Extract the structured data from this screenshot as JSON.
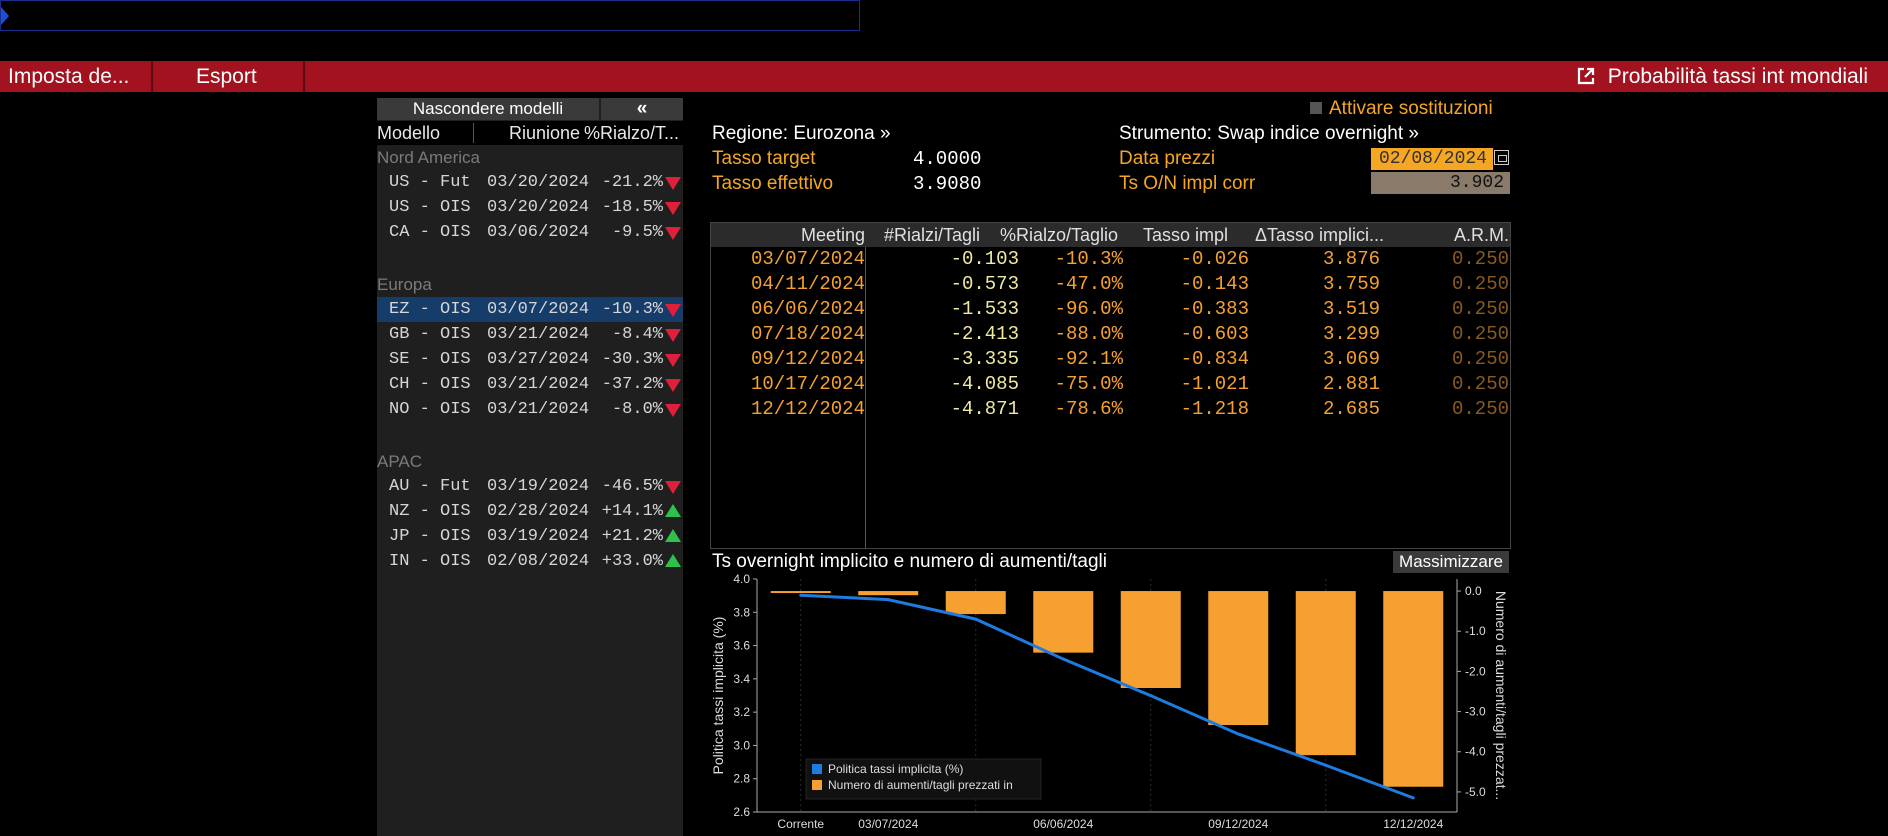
{
  "command_bar": {
    "value": ""
  },
  "toolbar": {
    "settings_label": "Imposta de...",
    "export_label": "Esport",
    "title": "Probabilità tassi int mondiali"
  },
  "left_panel": {
    "hide_models_label": "Nascondere modelli",
    "collapse_label": "«",
    "headers": {
      "model": "Modello",
      "meeting": "Riunione",
      "pct": "%Rialzo/T..."
    },
    "groups": [
      {
        "name": "Nord America",
        "rows": [
          {
            "model": "US - Fut",
            "date": "03/20/2024",
            "pct": "-21.2%",
            "dir": "down"
          },
          {
            "model": "US - OIS",
            "date": "03/20/2024",
            "pct": "-18.5%",
            "dir": "down"
          },
          {
            "model": "CA - OIS",
            "date": "03/06/2024",
            "pct": "-9.5%",
            "dir": "down"
          }
        ]
      },
      {
        "name": "Europa",
        "rows": [
          {
            "model": "EZ - OIS",
            "date": "03/07/2024",
            "pct": "-10.3%",
            "dir": "down",
            "selected": true
          },
          {
            "model": "GB - OIS",
            "date": "03/21/2024",
            "pct": "-8.4%",
            "dir": "down"
          },
          {
            "model": "SE - OIS",
            "date": "03/27/2024",
            "pct": "-30.3%",
            "dir": "down"
          },
          {
            "model": "CH - OIS",
            "date": "03/21/2024",
            "pct": "-37.2%",
            "dir": "down"
          },
          {
            "model": "NO - OIS",
            "date": "03/21/2024",
            "pct": "-8.0%",
            "dir": "down"
          }
        ]
      },
      {
        "name": "APAC",
        "rows": [
          {
            "model": "AU - Fut",
            "date": "03/19/2024",
            "pct": "-46.5%",
            "dir": "down"
          },
          {
            "model": "NZ - OIS",
            "date": "02/28/2024",
            "pct": "+14.1%",
            "dir": "up"
          },
          {
            "model": "JP - OIS",
            "date": "03/19/2024",
            "pct": "+21.2%",
            "dir": "up"
          },
          {
            "model": "IN - OIS",
            "date": "02/08/2024",
            "pct": "+33.0%",
            "dir": "up"
          }
        ]
      }
    ]
  },
  "info": {
    "substitution_label": "Attivare sostituzioni",
    "region_label": "Regione: Eurozona »",
    "instrument_label": "Strumento: Swap indice overnight »",
    "target_rate_label": "Tasso target",
    "target_rate_value": "4.0000",
    "effective_rate_label": "Tasso effettivo",
    "effective_rate_value": "3.9080",
    "price_date_label": "Data prezzi",
    "price_date_value": "02/08/2024",
    "on_rate_label": "Ts O/N impl corr",
    "on_rate_value": "3.902"
  },
  "table": {
    "headers": {
      "meeting": "Meeting",
      "hikes": "#Rialzi/Tagli",
      "pct": "%Rialzo/Taglio",
      "impl": "Tasso impl",
      "delta": "ΔTasso implici...",
      "arm": "A.R.M."
    },
    "rows": [
      {
        "meeting": "03/07/2024",
        "hikes": "-0.103",
        "pct": "-10.3%",
        "impl": "-0.026",
        "delta": "3.876",
        "arm": "0.250"
      },
      {
        "meeting": "04/11/2024",
        "hikes": "-0.573",
        "pct": "-47.0%",
        "impl": "-0.143",
        "delta": "3.759",
        "arm": "0.250"
      },
      {
        "meeting": "06/06/2024",
        "hikes": "-1.533",
        "pct": "-96.0%",
        "impl": "-0.383",
        "delta": "3.519",
        "arm": "0.250"
      },
      {
        "meeting": "07/18/2024",
        "hikes": "-2.413",
        "pct": "-88.0%",
        "impl": "-0.603",
        "delta": "3.299",
        "arm": "0.250"
      },
      {
        "meeting": "09/12/2024",
        "hikes": "-3.335",
        "pct": "-92.1%",
        "impl": "-0.834",
        "delta": "3.069",
        "arm": "0.250"
      },
      {
        "meeting": "10/17/2024",
        "hikes": "-4.085",
        "pct": "-75.0%",
        "impl": "-1.021",
        "delta": "2.881",
        "arm": "0.250"
      },
      {
        "meeting": "12/12/2024",
        "hikes": "-4.871",
        "pct": "-78.6%",
        "impl": "-1.218",
        "delta": "2.685",
        "arm": "0.250"
      }
    ]
  },
  "chart_title": "Ts overnight implicito e numero di aumenti/tagli",
  "maximize_label": "Massimizzare",
  "chart_data": {
    "type": "bar",
    "categories": [
      "Corrente",
      "03/07/2024",
      "04/11/2024",
      "06/06/2024",
      "07/18/2024",
      "09/12/2024",
      "10/17/2024",
      "12/12/2024"
    ],
    "x_tick_labels": [
      "Corrente",
      "03/07/2024",
      "06/06/2024",
      "09/12/2024",
      "12/12/2024"
    ],
    "series": [
      {
        "name": "Politica tassi implicita (%)",
        "type": "line",
        "axis": "left",
        "color": "#1e7be0",
        "values": [
          3.902,
          3.876,
          3.759,
          3.519,
          3.299,
          3.069,
          2.881,
          2.685
        ]
      },
      {
        "name": "Numero di aumenti/tagli prezzati in",
        "type": "bar",
        "axis": "right",
        "color": "#f5a030",
        "values": [
          0,
          -0.103,
          -0.573,
          -1.533,
          -2.413,
          -3.335,
          -4.085,
          -4.871
        ]
      }
    ],
    "ylabel": "Politica tassi implicita (%)",
    "ylabel_right": "Numero di aumenti/tagli prezzat...",
    "ylim": [
      2.6,
      4.0
    ],
    "ylim_right": [
      -5.5,
      0.3
    ],
    "y_ticks": [
      "4.0",
      "3.8",
      "3.6",
      "3.4",
      "3.2",
      "3.0",
      "2.8",
      "2.6"
    ],
    "y_ticks_right": [
      "0.0",
      "-1.0",
      "-2.0",
      "-3.0",
      "-4.0",
      "-5.0"
    ],
    "legend_position": "bottom-left"
  }
}
